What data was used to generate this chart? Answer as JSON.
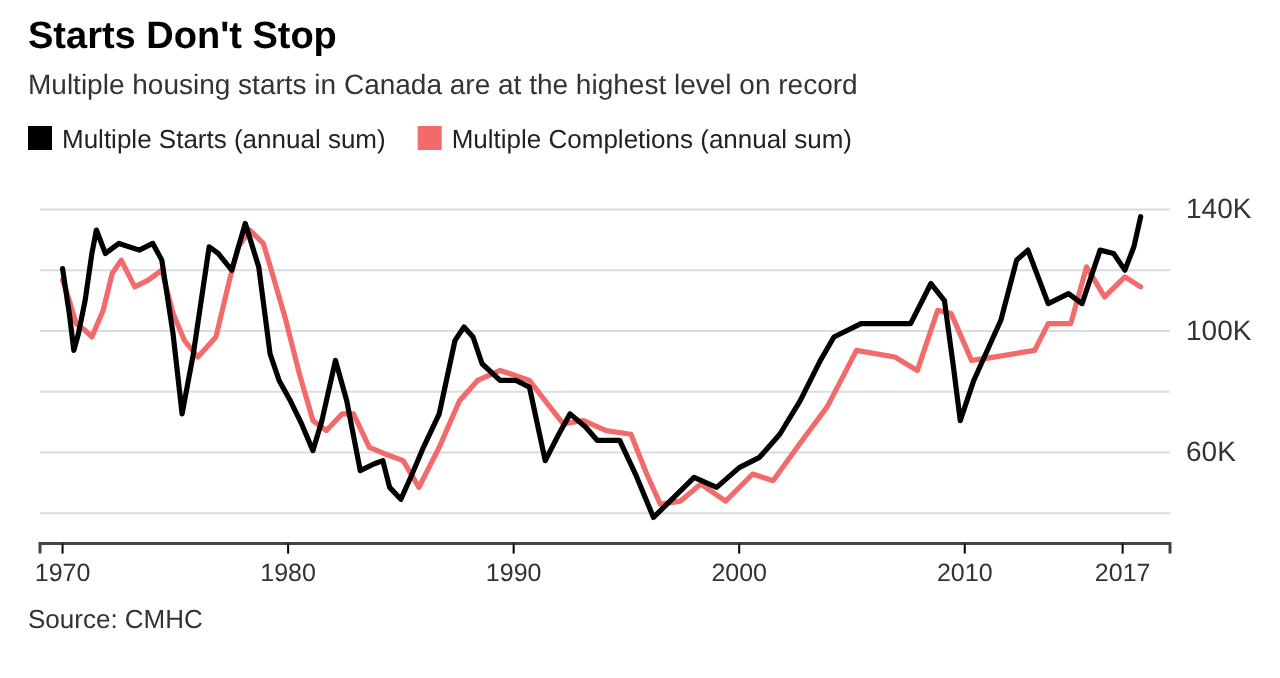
{
  "chart_data": {
    "type": "line",
    "title": "Starts Don't Stop",
    "subtitle": "Multiple housing starts in Canada are at the highest level on record",
    "annotations": [
      "Source: CMHC"
    ],
    "legend": "top",
    "grid": "y",
    "xlim": [
      1969,
      2019.1
    ],
    "xticks": [
      1970,
      1980,
      1990,
      2000,
      2010,
      2017
    ],
    "ylim": [
      30,
      140
    ],
    "yticks": [
      {
        "value": 40,
        "label": null
      },
      {
        "value": 60,
        "label": "60K"
      },
      {
        "value": 80,
        "label": null
      },
      {
        "value": 100,
        "label": "100K"
      },
      {
        "value": 120,
        "label": null
      },
      {
        "value": 140,
        "label": "140K"
      }
    ],
    "series": [
      {
        "name": "Multiple Starts (annual sum)",
        "color": "#000000",
        "x": [
          1970,
          1970.3,
          1970.5,
          1970.7,
          1971,
          1971.3,
          1971.5,
          1971.9,
          1972.5,
          1973.4,
          1974,
          1974.4,
          1974.9,
          1975.3,
          1975.8,
          1976.5,
          1976.9,
          1977.5,
          1978.1,
          1978.7,
          1979.2,
          1979.6,
          1980.1,
          1980.6,
          1981.1,
          1981.5,
          1982.1,
          1982.6,
          1983.2,
          1983.8,
          1984.2,
          1984.5,
          1985,
          1985.5,
          1986,
          1986.7,
          1987.4,
          1987.8,
          1988.2,
          1988.6,
          1989.4,
          1990.1,
          1990.7,
          1991.4,
          1992,
          1992.5,
          1993.2,
          1993.7,
          1994.7,
          1995.4,
          1996.2,
          1996.8,
          1998,
          1999,
          2000,
          2000.9,
          2001.8,
          2002.7,
          2003.6,
          2004.2,
          2005.4,
          2006.9,
          2007.6,
          2008.5,
          2009.1,
          2009.5,
          2009.8,
          2010.4,
          2011.6,
          2012.3,
          2012.8,
          2013.7,
          2014.6,
          2015.2,
          2016,
          2016.6,
          2017.1,
          2017.5,
          2017.8
        ],
        "values": [
          120.5,
          105.7,
          93.6,
          99,
          110,
          125.5,
          133.2,
          125.5,
          128.8,
          126.6,
          128.8,
          123.3,
          99,
          72.7,
          92.5,
          127.7,
          125.5,
          120,
          135.4,
          121,
          92.5,
          83.7,
          77,
          69.4,
          60.6,
          70.5,
          90.3,
          77,
          54,
          56.2,
          57.3,
          48.5,
          44.6,
          52.9,
          61.7,
          72.7,
          96.9,
          101.3,
          98,
          89.2,
          83.7,
          83.7,
          81.5,
          57.3,
          66,
          72.7,
          68.3,
          64,
          64,
          52.9,
          38.6,
          43,
          51.8,
          48.5,
          55,
          58.4,
          66,
          77,
          90.3,
          98,
          102.4,
          102.4,
          102.4,
          115.6,
          110,
          88.1,
          70.5,
          83.7,
          103.5,
          123.3,
          126.6,
          109,
          112.3,
          109,
          126.6,
          125.5,
          120,
          127.7,
          137.6
        ]
      },
      {
        "name": "Multiple Completions (annual sum)",
        "color": "#f26a6a",
        "x": [
          1970,
          1970.3,
          1970.6,
          1971,
          1971.3,
          1971.8,
          1972.2,
          1972.6,
          1973.2,
          1973.8,
          1974.4,
          1974.9,
          1975.4,
          1976,
          1976.8,
          1977.4,
          1977.8,
          1978.3,
          1978.9,
          1979.3,
          1979.9,
          1980.5,
          1981.1,
          1981.7,
          1982.4,
          1982.9,
          1983.6,
          1984.3,
          1985.1,
          1985.8,
          1986.7,
          1987.6,
          1988.4,
          1989.4,
          1990.7,
          1991.4,
          1992.2,
          1993.1,
          1994.1,
          1995.2,
          1995.9,
          1996.5,
          1997.4,
          1998.3,
          1999.4,
          2000.6,
          2001.5,
          2002.7,
          2003.9,
          2005.2,
          2006.9,
          2007.9,
          2008.8,
          2009.4,
          2010.3,
          2011.3,
          2013.1,
          2013.7,
          2014.7,
          2015.4,
          2016.2,
          2017.1,
          2017.8
        ],
        "values": [
          116.7,
          110,
          102.4,
          100.2,
          98,
          106.8,
          118.9,
          123.3,
          114.5,
          116.7,
          120,
          105.7,
          96.9,
          91.4,
          98,
          116.7,
          127.7,
          133.2,
          128.8,
          118.9,
          103.5,
          85.9,
          70.5,
          67.2,
          72.7,
          72.7,
          61.7,
          59.5,
          57.3,
          48.5,
          61.7,
          77,
          83.7,
          87,
          83.7,
          77,
          69.4,
          70.5,
          67.2,
          66,
          52.9,
          43,
          44,
          49.6,
          44,
          52.9,
          50.7,
          63,
          75,
          93.6,
          91.4,
          87,
          106.8,
          105.7,
          90.3,
          91.4,
          93.6,
          102.4,
          102.4,
          121.1,
          111.2,
          117.8,
          114.5
        ]
      }
    ]
  }
}
